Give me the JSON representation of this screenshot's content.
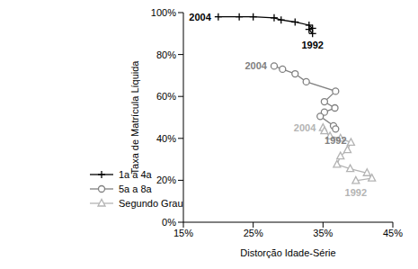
{
  "chart_data": {
    "type": "line",
    "x_label": "Distorção Idade-Série",
    "y_label": "Taxa de Matrícula Líquida",
    "xlim": [
      15,
      45
    ],
    "xticks": [
      {
        "value": 15,
        "label": "15%"
      },
      {
        "value": 25,
        "label": "25%"
      },
      {
        "value": 35,
        "label": "35%"
      },
      {
        "value": 45,
        "label": "45%"
      }
    ],
    "ylim": [
      0,
      100
    ],
    "yticks": [
      {
        "value": 0,
        "label": "0%"
      },
      {
        "value": 20,
        "label": "20%"
      },
      {
        "value": 40,
        "label": "40%"
      },
      {
        "value": 60,
        "label": "60%"
      },
      {
        "value": 80,
        "label": "80%"
      },
      {
        "value": 100,
        "label": "100%"
      }
    ],
    "grid": false,
    "legend": "lower left",
    "series": [
      {
        "name": "1a a 4a",
        "color": "#000000",
        "marker": "plus",
        "x": [
          20,
          23,
          25,
          28,
          29,
          31,
          33,
          33.5,
          33,
          33.5
        ],
        "values": [
          98,
          98,
          98,
          97.5,
          96.5,
          95.5,
          94,
          92.5,
          92,
          90
        ],
        "annotations": [
          {
            "text": "2004",
            "x": 20,
            "y": 98
          },
          {
            "text": "1992",
            "x": 33.5,
            "y": 90
          }
        ]
      },
      {
        "name": "5a a 8a",
        "color": "#808080",
        "marker": "circle",
        "x": [
          28,
          29.2,
          31,
          32.6,
          36.8,
          35.2,
          36.7,
          35.2,
          34.6,
          36.5,
          36.8
        ],
        "values": [
          74.5,
          73,
          70.8,
          67,
          62.5,
          57.5,
          54.5,
          52.5,
          50.5,
          46,
          44.5
        ],
        "annotations": [
          {
            "text": "2004",
            "x": 28,
            "y": 74.5
          },
          {
            "text": "1992",
            "x": 36.8,
            "y": 44.5
          }
        ]
      },
      {
        "name": "Segundo Grau",
        "color": "#b4b4b4",
        "marker": "triangle",
        "x": [
          35,
          35.2,
          36,
          37.5,
          39,
          38.5,
          37.5,
          37,
          38.9,
          41.3,
          42,
          39.7
        ],
        "values": [
          45,
          43.5,
          41,
          40,
          38,
          34.5,
          31.5,
          27.5,
          25.5,
          23.5,
          21,
          19.8
        ],
        "annotations": [
          {
            "text": "2004",
            "x": 35,
            "y": 45
          },
          {
            "text": "1992",
            "x": 39.7,
            "y": 19.8
          }
        ]
      }
    ]
  }
}
